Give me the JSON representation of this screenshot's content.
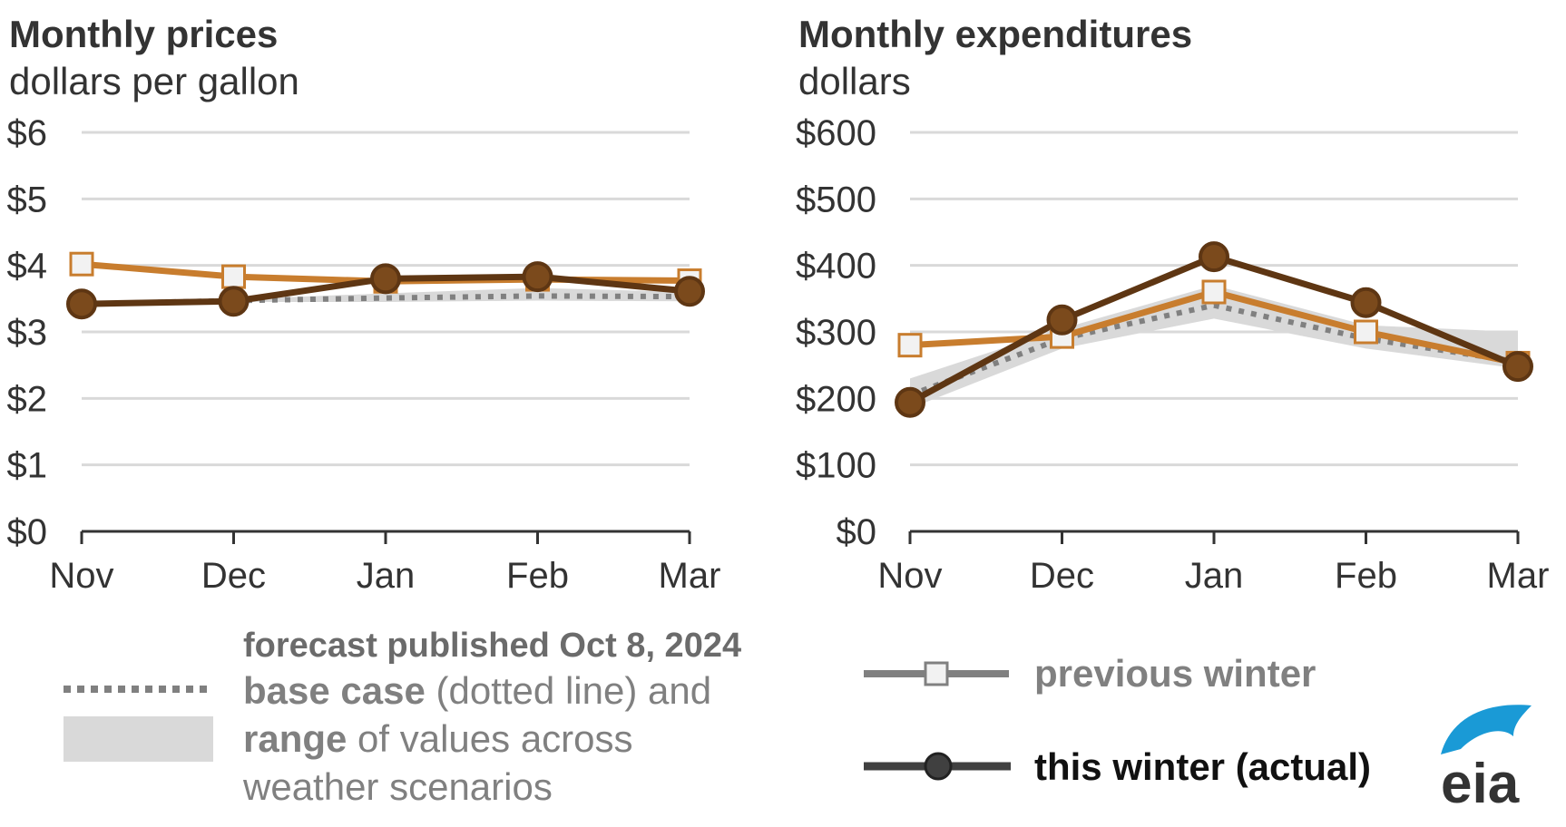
{
  "chart_data": [
    {
      "type": "line",
      "title": "Monthly prices",
      "subtitle": "dollars per gallon",
      "categories": [
        "Nov",
        "Dec",
        "Jan",
        "Feb",
        "Mar"
      ],
      "y_ticks": [
        "$0",
        "$1",
        "$2",
        "$3",
        "$4",
        "$5",
        "$6"
      ],
      "ylim": [
        0,
        6
      ],
      "grid": true,
      "series": [
        {
          "key": "range_low",
          "values": [
            3.42,
            3.45,
            3.45,
            3.47,
            3.46
          ]
        },
        {
          "key": "range_high",
          "values": [
            3.42,
            3.49,
            3.58,
            3.66,
            3.6
          ]
        },
        {
          "key": "base_case",
          "values": [
            3.42,
            3.47,
            3.51,
            3.54,
            3.53
          ]
        },
        {
          "key": "previous_winter",
          "values": [
            4.02,
            3.83,
            3.76,
            3.79,
            3.77
          ]
        },
        {
          "key": "this_winter",
          "values": [
            3.42,
            3.46,
            3.8,
            3.83,
            3.61
          ]
        }
      ]
    },
    {
      "type": "line",
      "title": "Monthly expenditures",
      "subtitle": "dollars",
      "categories": [
        "Nov",
        "Dec",
        "Jan",
        "Feb",
        "Mar"
      ],
      "y_ticks": [
        "$0",
        "$100",
        "$200",
        "$300",
        "$400",
        "$500",
        "$600"
      ],
      "ylim": [
        0,
        600
      ],
      "grid": true,
      "series": [
        {
          "key": "range_low",
          "values": [
            185,
            275,
            320,
            275,
            245
          ]
        },
        {
          "key": "range_high",
          "values": [
            230,
            305,
            370,
            310,
            300
          ]
        },
        {
          "key": "base_case",
          "values": [
            205,
            290,
            340,
            290,
            255
          ]
        },
        {
          "key": "previous_winter",
          "values": [
            280,
            293,
            360,
            300,
            253
          ]
        },
        {
          "key": "this_winter",
          "values": [
            194,
            318,
            413,
            344,
            248
          ]
        }
      ]
    }
  ],
  "legend": {
    "forecast_heading": "forecast published Oct 8, 2024",
    "base_case_bold": "base case",
    "base_case_rest": " (dotted line) and",
    "range_bold": "range",
    "range_rest": " of values across",
    "range_line3": "weather scenarios",
    "previous_winter": "previous winter",
    "this_winter": "this winter (actual)"
  },
  "logo": {
    "text": "eia"
  },
  "colors": {
    "previous_winter": "#c87d2e",
    "this_winter": "#5e3613",
    "this_winter_marker": "#7b4a1c",
    "base_case": "#808080",
    "range_fill": "#d9d9d9",
    "grid": "#d9d9d9",
    "axis": "#333333",
    "legend_line_previous": "#808080",
    "legend_line_actual": "#404040",
    "logo_arc": "#1a9ad6"
  }
}
